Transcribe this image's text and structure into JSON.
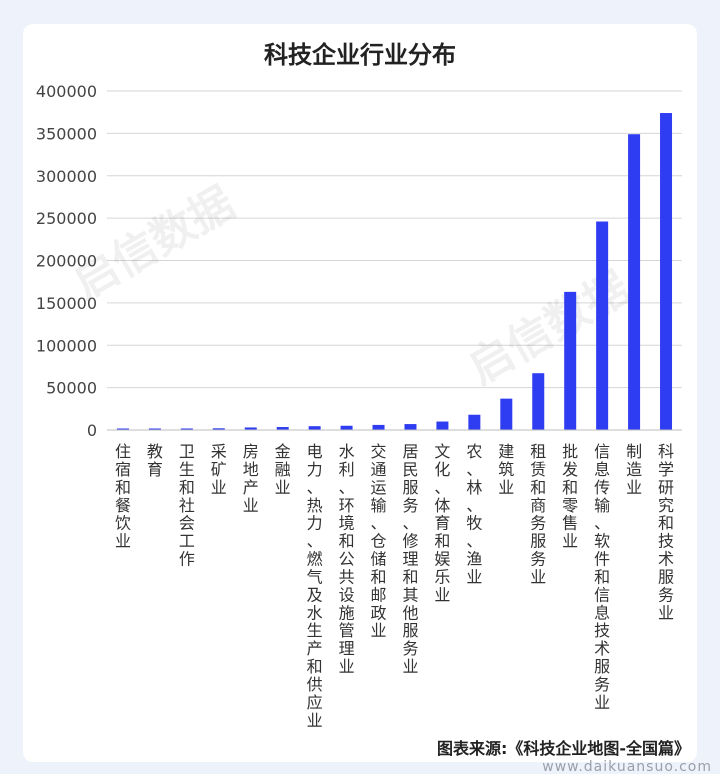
{
  "chart_data": {
    "type": "bar",
    "title": "科技企业行业分布",
    "xlabel": "",
    "ylabel": "",
    "ylim": [
      0,
      400000
    ],
    "yticks": [
      0,
      50000,
      100000,
      150000,
      200000,
      250000,
      300000,
      350000,
      400000
    ],
    "grid": true,
    "categories": [
      "住宿和餐饮业",
      "教育",
      "卫生和社会工作",
      "采矿业",
      "房地产业",
      "金融业",
      "电力、热力、燃气及水生产和供应业",
      "水利、环境和公共设施管理业",
      "交通运输、仓储和邮政业",
      "居民服务、修理和其他服务业",
      "文化、体育和娱乐业",
      "农、林、牧、渔业",
      "建筑业",
      "租赁和商务服务业",
      "批发和零售业",
      "信息传输、软件和信息技术服务业",
      "制造业",
      "科学研究和技术服务业"
    ],
    "series": [
      {
        "values": [
          700,
          1500,
          1800,
          2000,
          3000,
          3500,
          4500,
          5000,
          6000,
          7000,
          10000,
          18000,
          37000,
          67000,
          163000,
          246000,
          349000,
          374000
        ],
        "color": "#2f3df2"
      }
    ]
  },
  "watermark": "启信数据",
  "source": "图表来源:《科技企业地图-全国篇》",
  "site": "www.daikuansuo.com"
}
